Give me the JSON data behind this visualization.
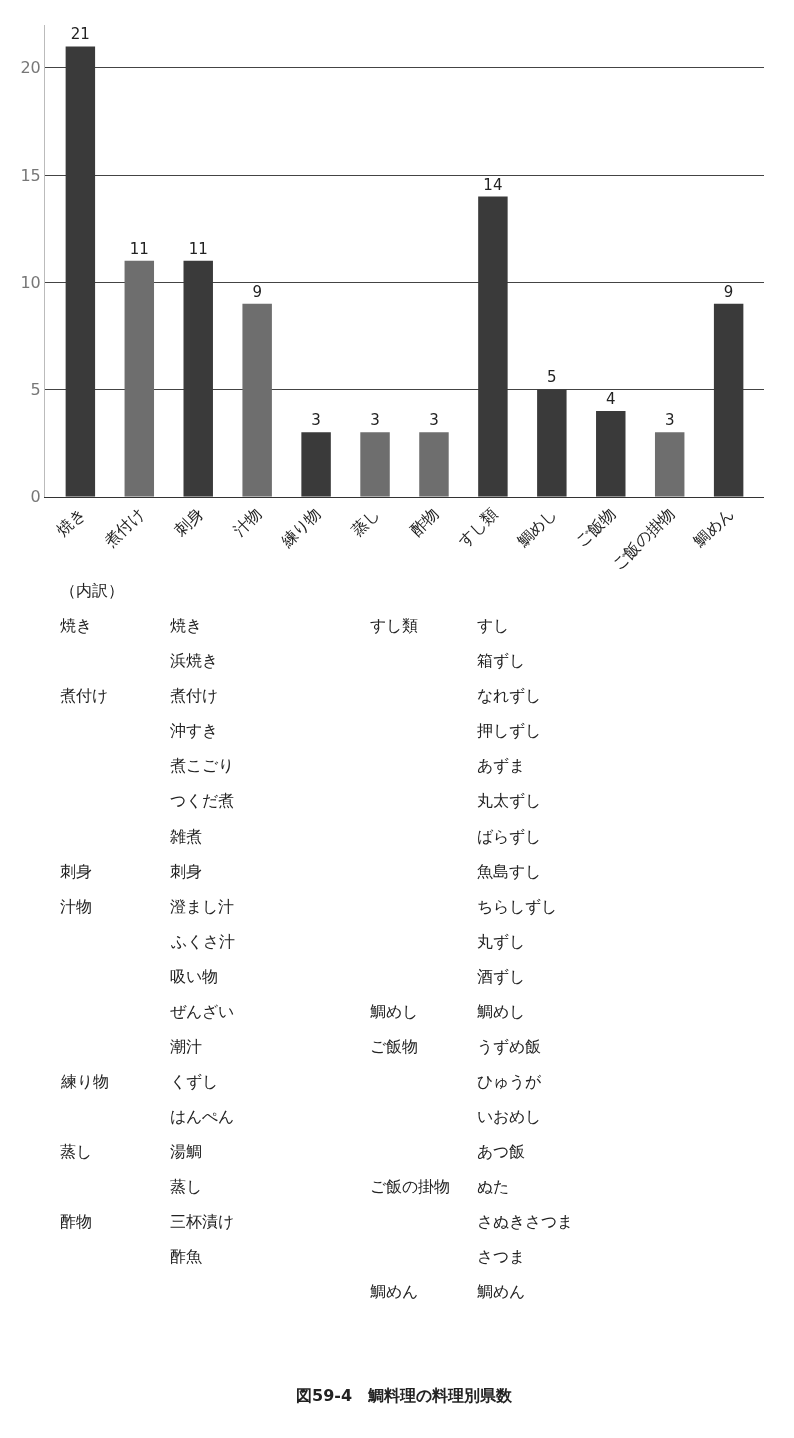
{
  "chart_data": {
    "type": "bar",
    "title": "図59-4　鯛料理の料理別県数",
    "categories": [
      "焼き",
      "煮付け",
      "刺身",
      "汁物",
      "練り物",
      "蒸し",
      "酢物",
      "すし類",
      "鯛めし",
      "ご飯物",
      "ご飯の掛物",
      "鯛めん"
    ],
    "values": [
      21,
      11,
      11,
      9,
      3,
      3,
      3,
      14,
      5,
      4,
      3,
      9
    ],
    "colors": [
      "#3a3a3a",
      "#6e6e6e",
      "#3a3a3a",
      "#6e6e6e",
      "#3a3a3a",
      "#6e6e6e",
      "#6e6e6e",
      "#3a3a3a",
      "#3a3a3a",
      "#3a3a3a",
      "#6e6e6e",
      "#3a3a3a"
    ],
    "ylim": [
      0,
      22
    ],
    "yticks": [
      0,
      5,
      10,
      15,
      20
    ],
    "grid": "y",
    "data_labels": true,
    "annotations": [
      "（内訳）",
      "焼き\t焼き\tすし類\tすし",
      "\t浜焼き\t\t箱ずし",
      "煮付け\t煮付け\t\tなれずし",
      "\t沖すき\t\t押しずし",
      "\t煮こごり\t\tあずま",
      "\tつくだ煮\t\t丸太ずし",
      "\t雑煮\t\tばらずし",
      "刺身\t刺身\t\t魚島すし",
      "汁物\t澄まし汁\t\tちらしずし",
      "\tふくさ汁\t\t丸ずし",
      "\t吸い物\t\t酒ずし",
      "\tぜんざい\t鯛めし\t鯛めし",
      "\t潮汁\tご飯物\tうずめ飯",
      "練り物\tくずし\t\tひゅうが",
      "\tはんぺん\t\tいおめし",
      "蒸し\t湯鯛\t\tあつ飯",
      "\t蒸し\tご飯の掛物\tぬた",
      "酢物\t三杯漬け\t\tさぬきさつま",
      "\t酢魚\t\tさつま",
      "\t\t鯛めん\t鯛めん"
    ]
  }
}
